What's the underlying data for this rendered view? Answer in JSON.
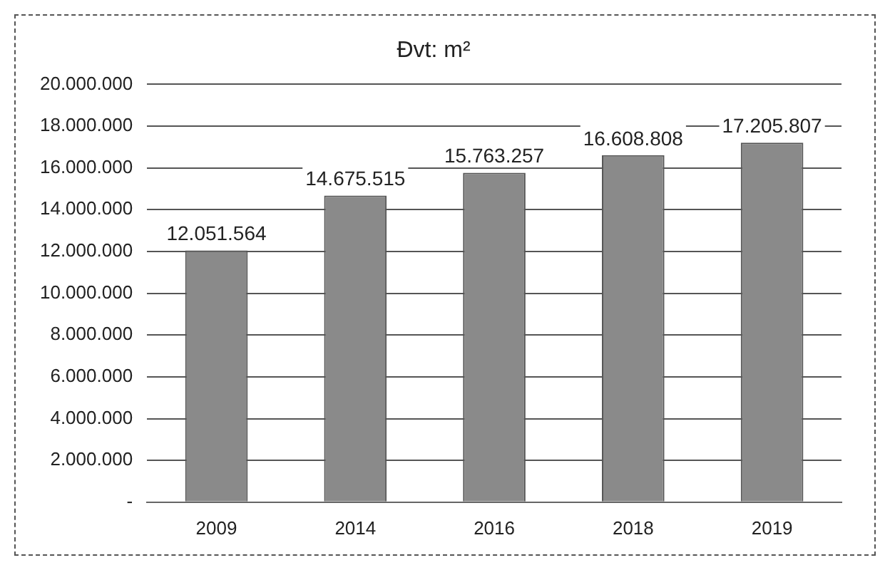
{
  "chart_data": {
    "type": "bar",
    "title": "Đvt: m²",
    "categories": [
      "2009",
      "2014",
      "2016",
      "2018",
      "2019"
    ],
    "values": [
      12051564,
      14675515,
      15763257,
      16608808,
      17205807
    ],
    "value_labels": [
      "12.051.564",
      "14.675.515",
      "15.763.257",
      "16.608.808",
      "17.205.807"
    ],
    "color": "#8a8a8a",
    "ylim": [
      0,
      20000000
    ],
    "yticks": [
      {
        "value": 0,
        "label": "-"
      },
      {
        "value": 2000000,
        "label": "2.000.000"
      },
      {
        "value": 4000000,
        "label": "4.000.000"
      },
      {
        "value": 6000000,
        "label": "6.000.000"
      },
      {
        "value": 8000000,
        "label": "8.000.000"
      },
      {
        "value": 10000000,
        "label": "10.000.000"
      },
      {
        "value": 12000000,
        "label": "12.000.000"
      },
      {
        "value": 14000000,
        "label": "14.000.000"
      },
      {
        "value": 16000000,
        "label": "16.000.000"
      },
      {
        "value": 18000000,
        "label": "18.000.000"
      },
      {
        "value": 20000000,
        "label": "20.000.000"
      }
    ],
    "grid": "y"
  }
}
